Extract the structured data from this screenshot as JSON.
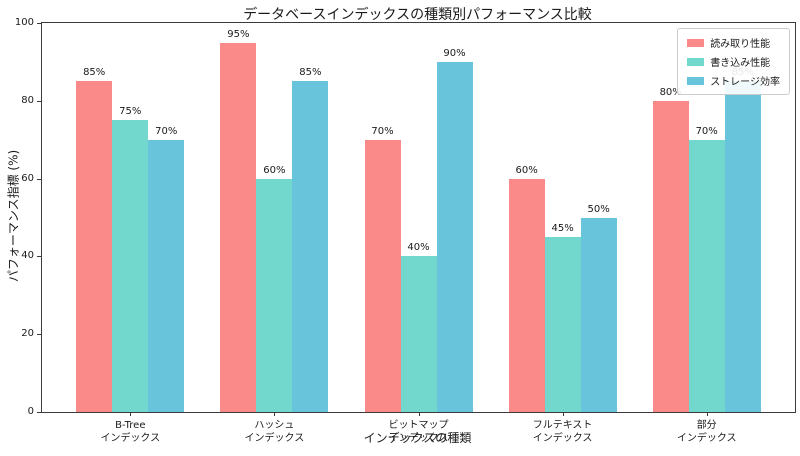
{
  "chart_data": {
    "type": "bar",
    "title": "データベースインデックスの種類別パフォーマンス比較",
    "xlabel": "インデックスの種類",
    "ylabel": "パフォーマンス指標 (%)",
    "categories": [
      "B-Tree\nインデックス",
      "ハッシュ\nインデックス",
      "ビットマップ\nインデックス",
      "フルテキスト\nインデックス",
      "部分\nインデックス"
    ],
    "series": [
      {
        "name": "読み取り性能",
        "color": "#FA8A8A",
        "values": [
          85,
          95,
          70,
          60,
          80
        ]
      },
      {
        "name": "書き込み性能",
        "color": "#72D7CC",
        "values": [
          75,
          60,
          40,
          45,
          70
        ]
      },
      {
        "name": "ストレージ効率",
        "color": "#68C4DB",
        "values": [
          70,
          85,
          90,
          50,
          85
        ]
      }
    ],
    "ylim": [
      0,
      100
    ],
    "yticks": [
      0,
      20,
      40,
      60,
      80,
      100
    ],
    "value_suffix": "%",
    "legend_position": "upper right",
    "grid": false
  }
}
